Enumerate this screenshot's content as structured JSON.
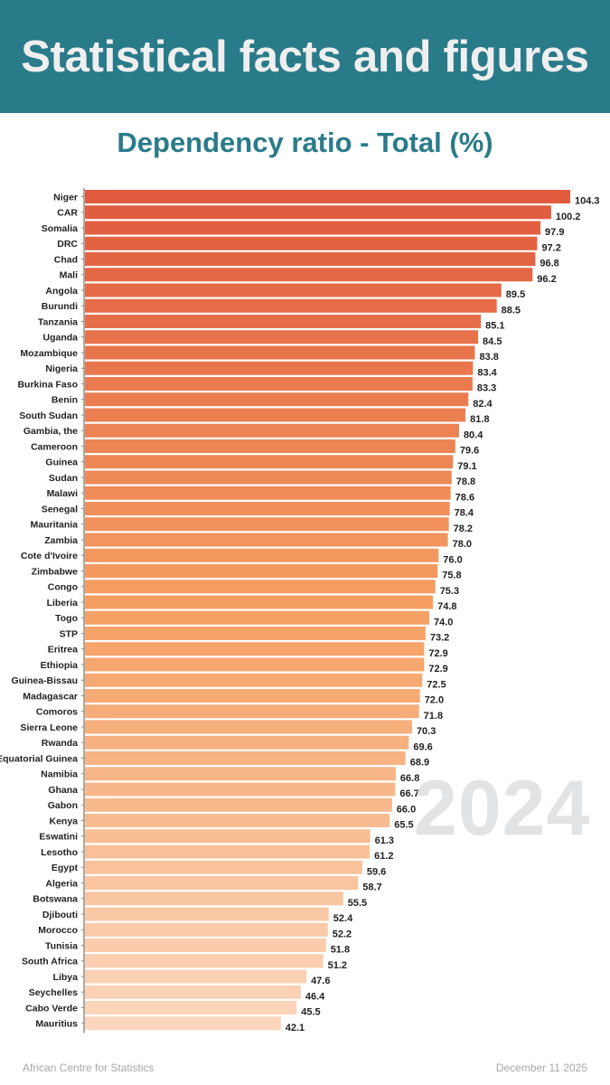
{
  "header": {
    "title": "Statistical facts and figures",
    "background_color": "#2A7B8A"
  },
  "watermark": "2024",
  "footer": {
    "source": "African Centre for Statistics",
    "date": "December 11 2025"
  },
  "chart_data": {
    "type": "bar",
    "orientation": "horizontal",
    "title": "Dependency ratio - Total (%)",
    "xlabel": "",
    "ylabel": "",
    "year": "2024",
    "grid": false,
    "legend": "none",
    "xlim": [
      0,
      104.3
    ],
    "color_scale": [
      "#E05A3E",
      "#F5A063",
      "#FBD6BD"
    ],
    "categories": [
      "Niger",
      "CAR",
      "Somalia",
      "DRC",
      "Chad",
      "Mali",
      "Angola",
      "Burundi",
      "Tanzania",
      "Uganda",
      "Mozambique",
      "Nigeria",
      "Burkina Faso",
      "Benin",
      "South Sudan",
      "Gambia, the",
      "Cameroon",
      "Guinea",
      "Sudan",
      "Malawi",
      "Senegal",
      "Mauritania",
      "Zambia",
      "Cote d'Ivoire",
      "Zimbabwe",
      "Congo",
      "Liberia",
      "Togo",
      "STP",
      "Eritrea",
      "Ethiopia",
      "Guinea-Bissau",
      "Madagascar",
      "Comoros",
      "Sierra Leone",
      "Rwanda",
      "Equatorial Guinea",
      "Namibia",
      "Ghana",
      "Gabon",
      "Kenya",
      "Eswatini",
      "Lesotho",
      "Egypt",
      "Algeria",
      "Botswana",
      "Djibouti",
      "Morocco",
      "Tunisia",
      "South Africa",
      "Libya",
      "Seychelles",
      "Cabo Verde",
      "Mauritius"
    ],
    "values": [
      104.3,
      100.2,
      97.9,
      97.2,
      96.8,
      96.2,
      89.5,
      88.5,
      85.1,
      84.5,
      83.8,
      83.4,
      83.3,
      82.4,
      81.8,
      80.4,
      79.6,
      79.1,
      78.8,
      78.6,
      78.4,
      78.2,
      78.0,
      76.0,
      75.8,
      75.3,
      74.8,
      74.0,
      73.2,
      72.9,
      72.9,
      72.5,
      72.0,
      71.8,
      70.3,
      69.6,
      68.9,
      66.8,
      66.7,
      66.0,
      65.5,
      61.3,
      61.2,
      59.6,
      58.7,
      55.5,
      52.4,
      52.2,
      51.8,
      51.2,
      47.6,
      46.4,
      45.5,
      42.1
    ],
    "value_labels": [
      "104.3",
      "100.2",
      "97.9",
      "97.2",
      "96.8",
      "96.2",
      "89.5",
      "88.5",
      "85.1",
      "84.5",
      "83.8",
      "83.4",
      "83.3",
      "82.4",
      "81.8",
      "80.4",
      "79.6",
      "79.1",
      "78.8",
      "78.6",
      "78.4",
      "78.2",
      "78.0",
      "76.0",
      "75.8",
      "75.3",
      "74.8",
      "74.0",
      "73.2",
      "72.9",
      "72.9",
      "72.5",
      "72.0",
      "71.8",
      "70.3",
      "69.6",
      "68.9",
      "66.8",
      "66.7",
      "66.0",
      "65.5",
      "61.3",
      "61.2",
      "59.6",
      "58.7",
      "55.5",
      "52.4",
      "52.2",
      "51.8",
      "51.2",
      "47.6",
      "46.4",
      "45.5",
      "42.1"
    ]
  }
}
